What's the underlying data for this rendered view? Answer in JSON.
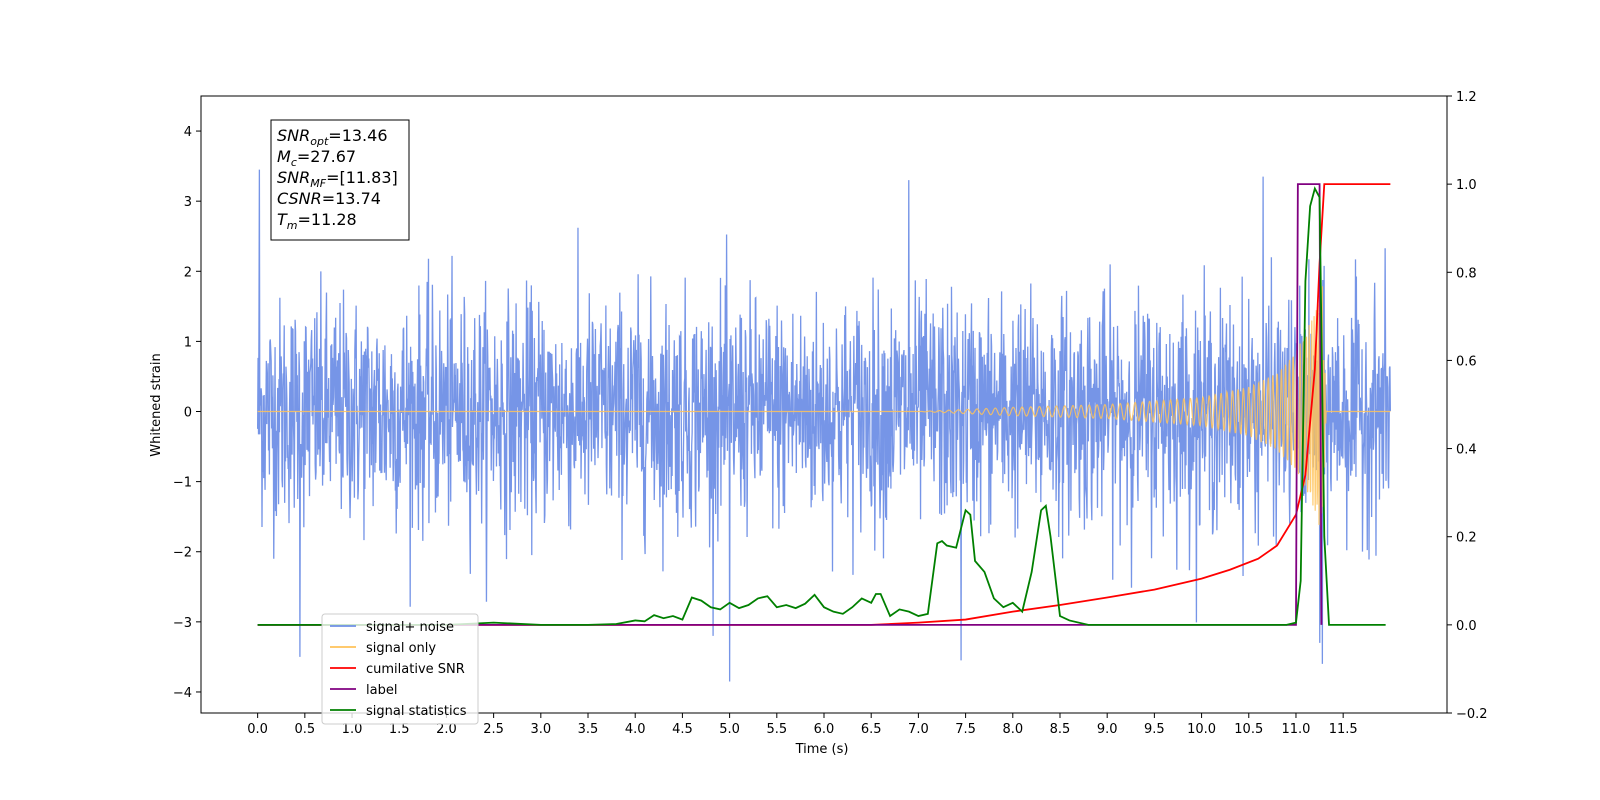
{
  "chart_data": {
    "type": "line",
    "xlabel": "Time (s)",
    "ylabel": "Whitened strain",
    "xlim": [
      -0.6,
      12.6
    ],
    "ylim": [
      -4.3,
      4.5
    ],
    "ylim_right": [
      -0.2,
      1.2
    ],
    "x_ticks": [
      "0.0",
      "0.5",
      "1.0",
      "1.5",
      "2.0",
      "2.5",
      "3.0",
      "3.5",
      "4.0",
      "4.5",
      "5.0",
      "5.5",
      "6.0",
      "6.5",
      "7.0",
      "7.5",
      "8.0",
      "8.5",
      "9.0",
      "9.5",
      "10.0",
      "10.5",
      "11.0",
      "11.5"
    ],
    "y_ticks_left": [
      "4",
      "3",
      "2",
      "1",
      "0",
      "−1",
      "−2",
      "−3",
      "−4"
    ],
    "y_ticks_right": [
      "1.2",
      "1.0",
      "0.8",
      "0.6",
      "0.4",
      "0.2",
      "0.0",
      "−0.2"
    ],
    "annotation": {
      "lines": [
        {
          "main": "SNR",
          "sub": "opt",
          "value": "=13.46"
        },
        {
          "main": "M",
          "sub": "c",
          "value": "=27.67"
        },
        {
          "main": "SNR",
          "sub": "MF",
          "value": "=[11.83]"
        },
        {
          "main": "CSNR",
          "sub": "",
          "value": "=13.74"
        },
        {
          "main": "T",
          "sub": "m",
          "value": "=11.28"
        }
      ]
    },
    "legend": {
      "placement": "lower-left",
      "entries": [
        {
          "label": "signal+ noise",
          "color": "#6f8fe6"
        },
        {
          "label": "signal only",
          "color": "#ffc35a"
        },
        {
          "label": "cumilative SNR",
          "color": "#ff0000"
        },
        {
          "label": "label",
          "color": "#800080"
        },
        {
          "label": "signal statistics",
          "color": "#008000"
        }
      ]
    },
    "series": [
      {
        "name": "signal+ noise",
        "axis": "left",
        "kind": "noise",
        "color": "#6f8fe6",
        "x_range": [
          0.0,
          12.0
        ],
        "sigma": 0.8,
        "spikes": [
          [
            0.02,
            3.45
          ],
          [
            0.45,
            -3.5
          ],
          [
            5.0,
            -3.85
          ],
          [
            7.45,
            -3.55
          ],
          [
            11.25,
            -3.3
          ],
          [
            11.28,
            -3.6
          ],
          [
            10.65,
            3.35
          ],
          [
            6.9,
            3.3
          ]
        ]
      },
      {
        "name": "signal only",
        "axis": "left",
        "kind": "chirp",
        "color": "#ffc35a",
        "x_range": [
          0.0,
          12.0
        ],
        "merger_time": 11.28,
        "envelope": [
          [
            7.0,
            0.0
          ],
          [
            8.0,
            0.06
          ],
          [
            9.0,
            0.1
          ],
          [
            10.0,
            0.2
          ],
          [
            10.5,
            0.35
          ],
          [
            10.8,
            0.55
          ],
          [
            11.0,
            0.85
          ],
          [
            11.2,
            1.4
          ],
          [
            11.28,
            1.8
          ],
          [
            11.32,
            0.0
          ],
          [
            12.0,
            0.0
          ]
        ]
      },
      {
        "name": "cumilative SNR",
        "axis": "right",
        "kind": "line",
        "color": "#ff0000",
        "x": [
          0.0,
          6.5,
          7.0,
          7.5,
          8.0,
          8.5,
          9.0,
          9.5,
          10.0,
          10.3,
          10.6,
          10.8,
          11.0,
          11.1,
          11.2,
          11.25,
          11.3,
          11.5,
          12.0
        ],
        "y": [
          0.0,
          0.0,
          0.005,
          0.012,
          0.03,
          0.045,
          0.062,
          0.08,
          0.105,
          0.125,
          0.15,
          0.18,
          0.25,
          0.34,
          0.58,
          0.82,
          1.0,
          1.0,
          1.0
        ]
      },
      {
        "name": "label",
        "axis": "right",
        "kind": "line",
        "color": "#800080",
        "x": [
          0.0,
          11.0,
          11.02,
          11.25,
          11.27
        ],
        "y": [
          0.0,
          0.0,
          1.0,
          1.0,
          0.0
        ]
      },
      {
        "name": "signal statistics",
        "axis": "right",
        "kind": "line",
        "color": "#008000",
        "x": [
          0.0,
          2.0,
          2.5,
          3.0,
          3.5,
          3.8,
          4.0,
          4.1,
          4.2,
          4.3,
          4.4,
          4.5,
          4.6,
          4.7,
          4.8,
          4.9,
          5.0,
          5.1,
          5.2,
          5.3,
          5.4,
          5.5,
          5.6,
          5.7,
          5.8,
          5.9,
          6.0,
          6.1,
          6.2,
          6.3,
          6.4,
          6.5,
          6.55,
          6.6,
          6.7,
          6.8,
          6.9,
          7.0,
          7.1,
          7.2,
          7.25,
          7.3,
          7.4,
          7.5,
          7.55,
          7.6,
          7.7,
          7.8,
          7.9,
          8.0,
          8.1,
          8.2,
          8.3,
          8.35,
          8.4,
          8.5,
          8.6,
          8.8,
          9.0,
          10.0,
          10.9,
          11.0,
          11.05,
          11.1,
          11.15,
          11.2,
          11.25,
          11.3,
          11.35,
          11.5,
          11.95
        ],
        "y": [
          0.0,
          0.0,
          0.005,
          0.0,
          0.0,
          0.002,
          0.01,
          0.008,
          0.022,
          0.015,
          0.02,
          0.012,
          0.062,
          0.055,
          0.04,
          0.035,
          0.05,
          0.038,
          0.045,
          0.06,
          0.065,
          0.04,
          0.045,
          0.038,
          0.048,
          0.068,
          0.04,
          0.03,
          0.025,
          0.04,
          0.06,
          0.05,
          0.07,
          0.07,
          0.02,
          0.035,
          0.03,
          0.02,
          0.025,
          0.185,
          0.19,
          0.18,
          0.175,
          0.26,
          0.25,
          0.145,
          0.12,
          0.06,
          0.04,
          0.05,
          0.03,
          0.12,
          0.26,
          0.27,
          0.2,
          0.02,
          0.01,
          0.0,
          0.0,
          0.0,
          0.0,
          0.005,
          0.1,
          0.78,
          0.95,
          0.99,
          0.97,
          0.2,
          0.0,
          0.0,
          0.0
        ]
      }
    ]
  }
}
